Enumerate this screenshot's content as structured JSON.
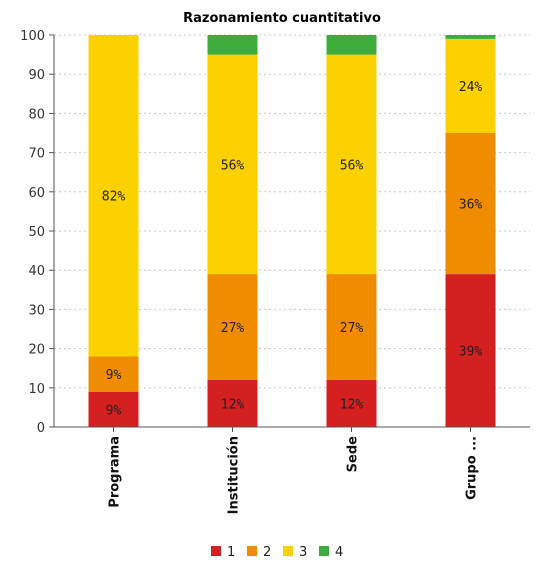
{
  "chart_data": {
    "type": "bar",
    "stacked": true,
    "title": "Razonamiento cuantitativo",
    "xlabel": "",
    "ylabel": "",
    "ylim": [
      0,
      100
    ],
    "yticks": [
      0,
      10,
      20,
      30,
      40,
      50,
      60,
      70,
      80,
      90,
      100
    ],
    "grid": true,
    "legend_position": "bottom",
    "categories": [
      "Programa",
      "Institución",
      "Sede",
      "Grupo ..."
    ],
    "series": [
      {
        "name": "1",
        "color": "#d42020",
        "values": [
          9,
          12,
          12,
          39
        ],
        "labels": [
          "9%",
          "12%",
          "12%",
          "39%"
        ]
      },
      {
        "name": "2",
        "color": "#f08c00",
        "values": [
          9,
          27,
          27,
          36
        ],
        "labels": [
          "9%",
          "27%",
          "27%",
          "36%"
        ]
      },
      {
        "name": "3",
        "color": "#fbd100",
        "values": [
          82,
          56,
          56,
          24
        ],
        "labels": [
          "82%",
          "56%",
          "56%",
          "24%"
        ]
      },
      {
        "name": "4",
        "color": "#3dac3d",
        "values": [
          0,
          5,
          5,
          1
        ],
        "labels": [
          "",
          "",
          "",
          ""
        ]
      }
    ]
  }
}
